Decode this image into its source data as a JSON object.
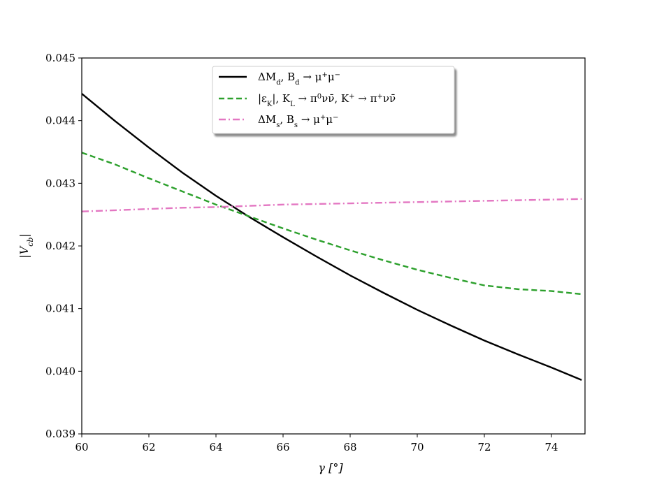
{
  "chart_data": {
    "type": "line",
    "xlabel": "γ [°]",
    "ylabel": "|V_cb|",
    "xlim": [
      60,
      75
    ],
    "ylim": [
      0.039,
      0.045
    ],
    "x_ticks": [
      "60",
      "62",
      "64",
      "66",
      "68",
      "70",
      "72",
      "74"
    ],
    "y_ticks": [
      "0.039",
      "0.040",
      "0.041",
      "0.042",
      "0.043",
      "0.044",
      "0.045"
    ],
    "grid": false,
    "legend_position": "top-center",
    "x": [
      60,
      61,
      62,
      63,
      64,
      65,
      66,
      67,
      68,
      69,
      70,
      71,
      72,
      73,
      74,
      74.9
    ],
    "series": [
      {
        "name": "ΔM_d, B_d → μ⁺μ⁻",
        "color": "#000000",
        "style": "solid",
        "values": [
          0.04443,
          0.04399,
          0.04357,
          0.04317,
          0.0428,
          0.04246,
          0.04214,
          0.04183,
          0.04153,
          0.04125,
          0.04098,
          0.04073,
          0.04049,
          0.04027,
          0.04006,
          0.03986
        ]
      },
      {
        "name": "|ε_K|, K_L → π⁰νν̄, K⁺ → π⁺νν̄",
        "color": "#2ca02c",
        "style": "dashed",
        "values": [
          0.04349,
          0.0433,
          0.04308,
          0.04287,
          0.04266,
          0.04247,
          0.04228,
          0.0421,
          0.04193,
          0.04177,
          0.04162,
          0.04149,
          0.04137,
          0.04131,
          0.04128,
          0.04123
        ]
      },
      {
        "name": "ΔM_s, B_s → μ⁺μ⁻",
        "color": "#e377c2",
        "style": "dashdot",
        "values": [
          0.04255,
          0.04257,
          0.04259,
          0.04261,
          0.04262,
          0.04264,
          0.04266,
          0.04267,
          0.04268,
          0.04269,
          0.0427,
          0.04271,
          0.04272,
          0.04273,
          0.04274,
          0.04275
        ]
      }
    ]
  }
}
